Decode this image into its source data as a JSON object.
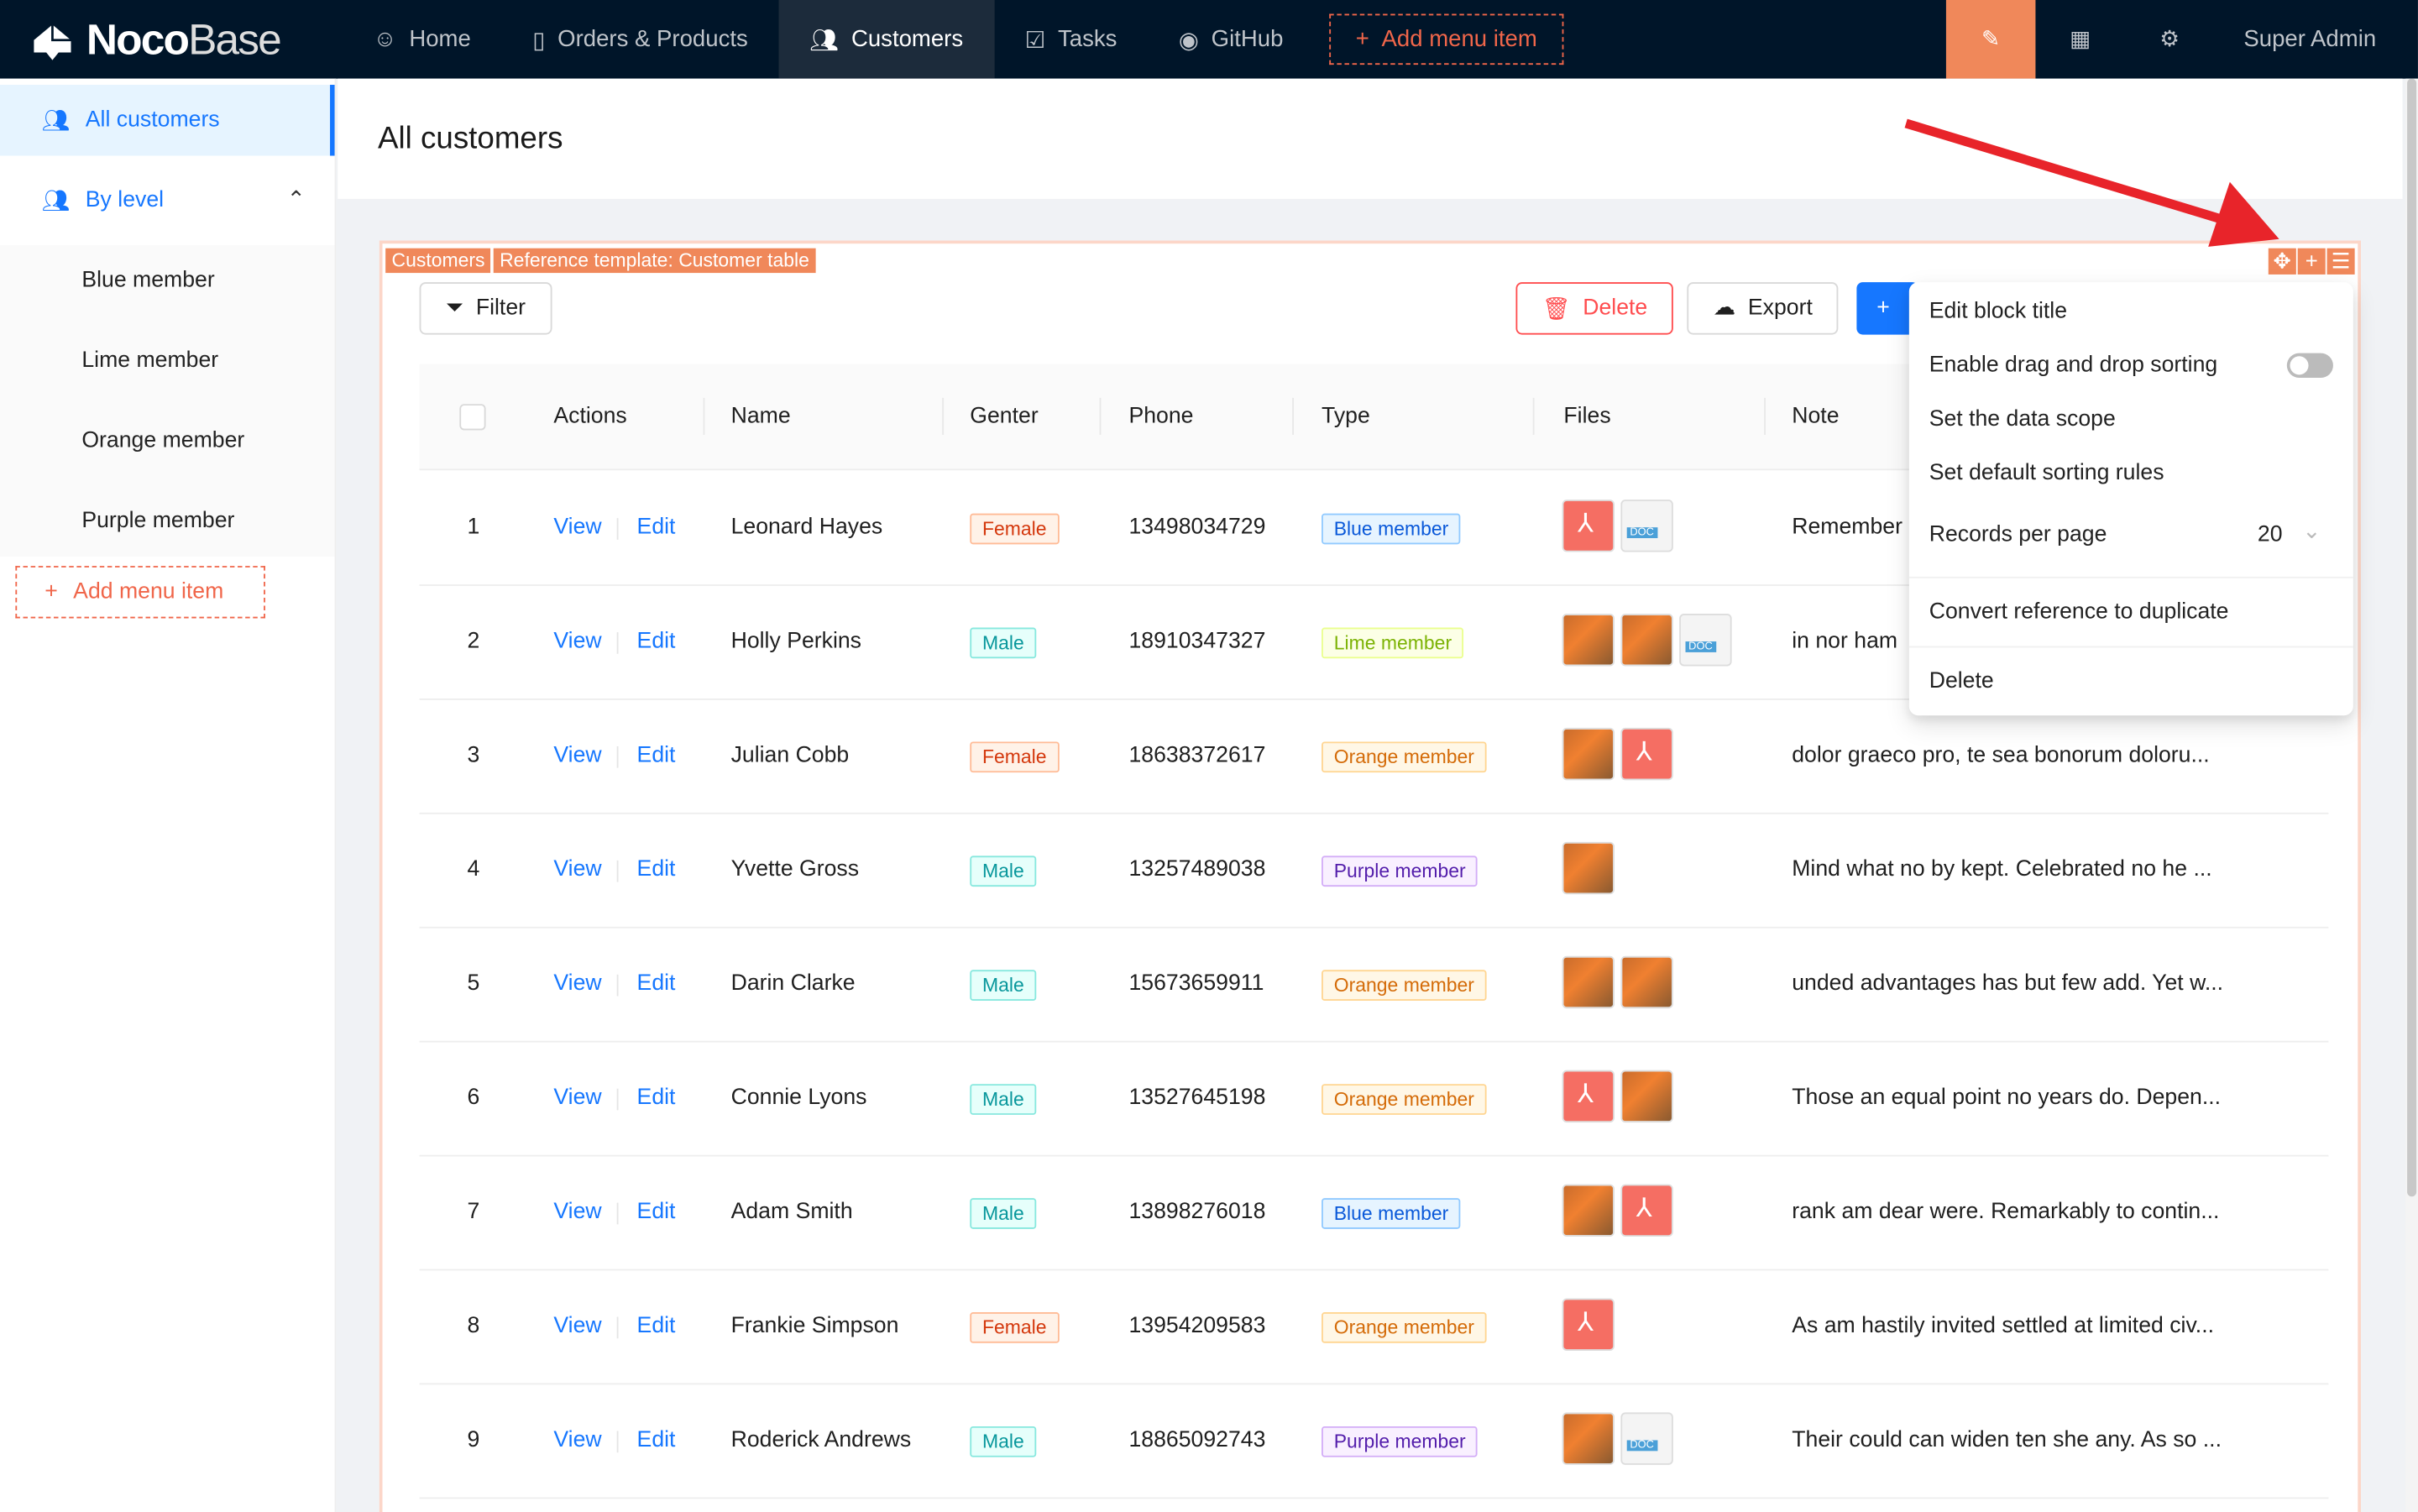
{
  "topbar": {
    "logo_bold": "Noco",
    "logo_light": "Base",
    "nav": [
      {
        "label": "Home",
        "icon": "smile-icon"
      },
      {
        "label": "Orders & Products",
        "icon": "file-check-icon"
      },
      {
        "label": "Customers",
        "icon": "users-icon",
        "active": true
      },
      {
        "label": "Tasks",
        "icon": "checkbox-icon"
      },
      {
        "label": "GitHub",
        "icon": "github-icon"
      }
    ],
    "add_menu_item": "Add menu item",
    "user": "Super Admin",
    "accent": "#f0885a"
  },
  "sidebar": {
    "items": [
      {
        "label": "All customers",
        "selected": true
      },
      {
        "label": "By level",
        "expanded": true
      }
    ],
    "sub_items": [
      "Blue member",
      "Lime member",
      "Orange member",
      "Purple member"
    ],
    "add_menu_item": "Add menu item"
  },
  "page": {
    "title": "All customers"
  },
  "block": {
    "labels": [
      "Customers",
      "Reference template: Customer table"
    ],
    "filter": "Filter",
    "delete": "Delete",
    "export": "Export",
    "columns": [
      "Actions",
      "Name",
      "Genter",
      "Phone",
      "Type",
      "Files",
      "Note"
    ],
    "rows": [
      {
        "n": "1",
        "view": "View",
        "edit": "Edit",
        "name": "Leonard Hayes",
        "gender": "Female",
        "phone": "13498034729",
        "type": "Blue member",
        "files": [
          "pdf",
          "doc"
        ],
        "note": "Remember"
      },
      {
        "n": "2",
        "view": "View",
        "edit": "Edit",
        "name": "Holly Perkins",
        "gender": "Male",
        "phone": "18910347327",
        "type": "Lime member",
        "files": [
          "img",
          "img",
          "doc"
        ],
        "note": "in nor ham"
      },
      {
        "n": "3",
        "view": "View",
        "edit": "Edit",
        "name": "Julian Cobb",
        "gender": "Female",
        "phone": "18638372617",
        "type": "Orange member",
        "files": [
          "img",
          "pdf"
        ],
        "note": "dolor graeco pro, te sea bonorum doloru..."
      },
      {
        "n": "4",
        "view": "View",
        "edit": "Edit",
        "name": "Yvette Gross",
        "gender": "Male",
        "phone": "13257489038",
        "type": "Purple member",
        "files": [
          "img"
        ],
        "note": "Mind what no by kept. Celebrated no he ..."
      },
      {
        "n": "5",
        "view": "View",
        "edit": "Edit",
        "name": "Darin Clarke",
        "gender": "Male",
        "phone": "15673659911",
        "type": "Orange member",
        "files": [
          "img",
          "img"
        ],
        "note": "unded advantages has but few add. Yet w..."
      },
      {
        "n": "6",
        "view": "View",
        "edit": "Edit",
        "name": "Connie Lyons",
        "gender": "Male",
        "phone": "13527645198",
        "type": "Orange member",
        "files": [
          "pdf",
          "img"
        ],
        "note": "Those an equal point no years do. Depen..."
      },
      {
        "n": "7",
        "view": "View",
        "edit": "Edit",
        "name": "Adam Smith",
        "gender": "Male",
        "phone": "13898276018",
        "type": "Blue member",
        "files": [
          "img",
          "pdf"
        ],
        "note": "rank am dear were. Remarkably to contin..."
      },
      {
        "n": "8",
        "view": "View",
        "edit": "Edit",
        "name": "Frankie Simpson",
        "gender": "Female",
        "phone": "13954209583",
        "type": "Orange member",
        "files": [
          "pdf"
        ],
        "note": "As am hastily invited settled at limited civ..."
      },
      {
        "n": "9",
        "view": "View",
        "edit": "Edit",
        "name": "Roderick Andrews",
        "gender": "Male",
        "phone": "18865092743",
        "type": "Purple member",
        "files": [
          "img",
          "doc"
        ],
        "note": "Their could can widen ten she any. As so ..."
      }
    ]
  },
  "menu": {
    "edit_title": "Edit block title",
    "drag_sort": "Enable drag and drop sorting",
    "drag_sort_enabled": false,
    "data_scope": "Set the data scope",
    "sorting_rules": "Set default sorting rules",
    "records_per_page": "Records per page",
    "records_value": "20",
    "convert": "Convert reference to duplicate",
    "delete": "Delete"
  }
}
